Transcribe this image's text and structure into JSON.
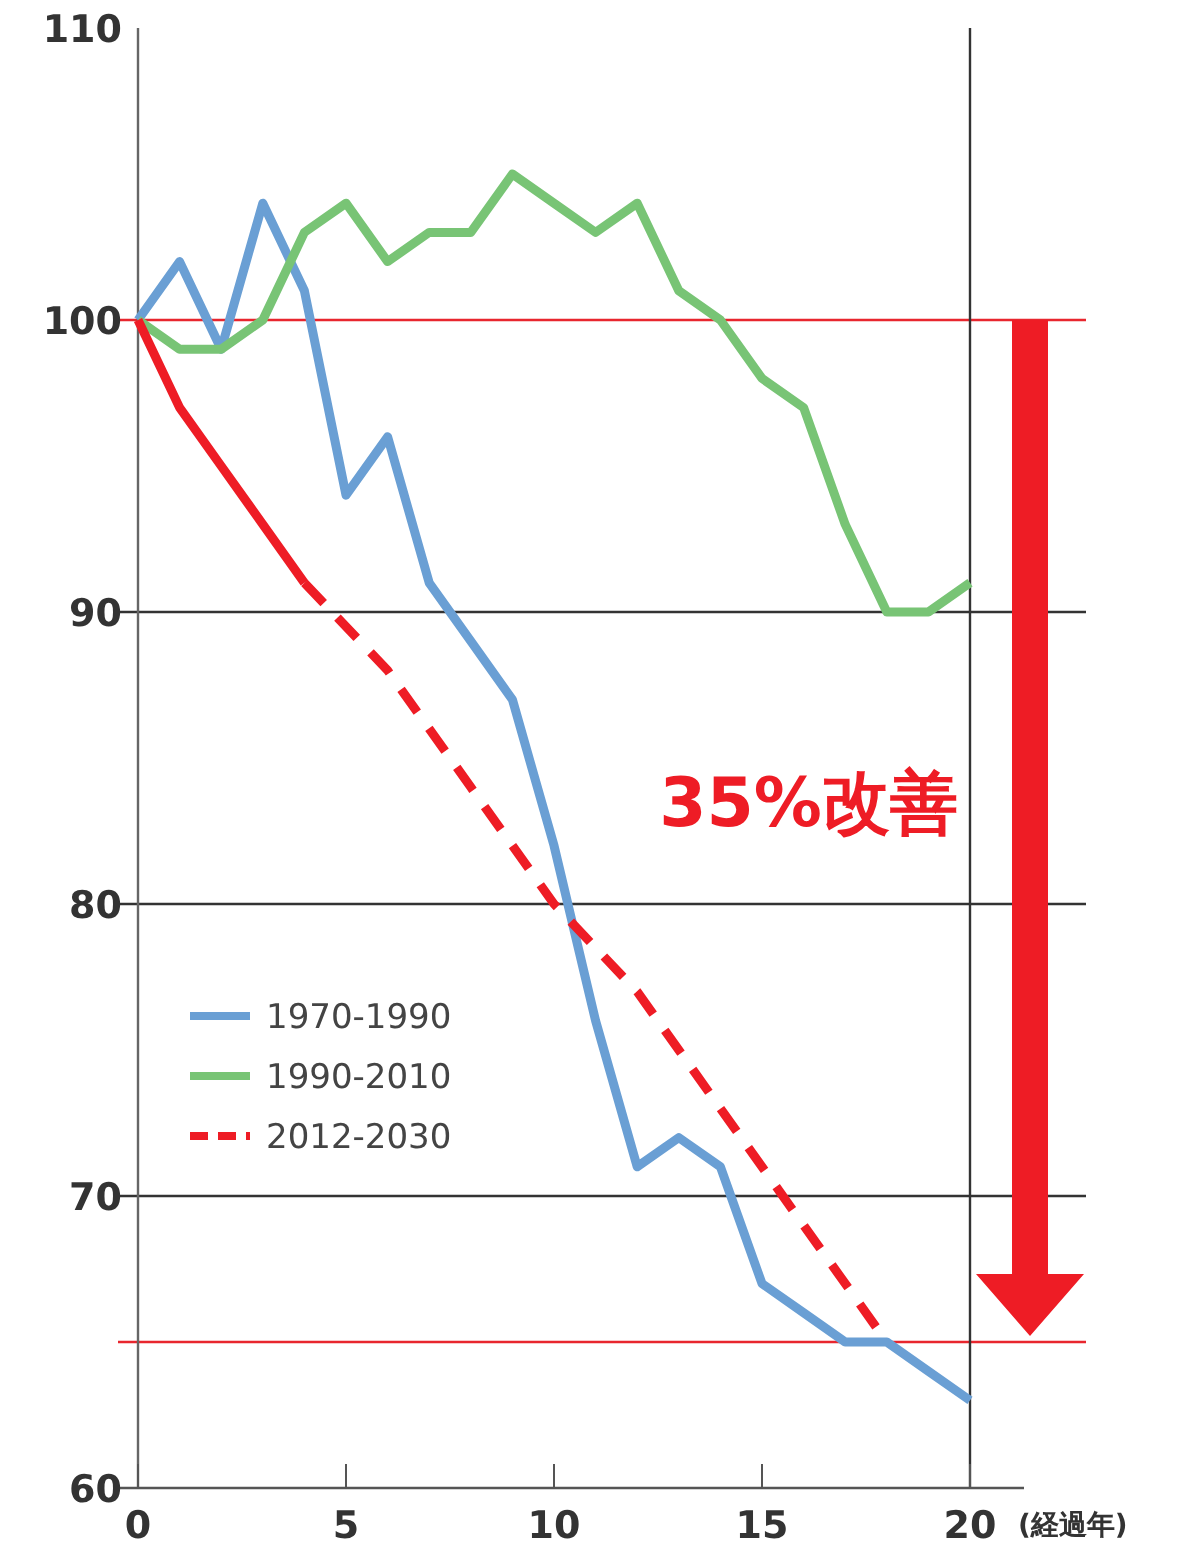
{
  "chart_data": {
    "type": "line",
    "xlabel": "(経過年)",
    "xlim": [
      0,
      20
    ],
    "ylim": [
      60,
      110
    ],
    "xticks": [
      0,
      5,
      10,
      15,
      20
    ],
    "yticks": [
      60,
      70,
      80,
      90,
      100,
      110
    ],
    "legend": "left",
    "grid": false,
    "series": [
      {
        "name": "1970-1990",
        "color": "#6a9fd4",
        "line_style": "solid",
        "x": [
          0,
          1,
          2,
          3,
          4,
          5,
          6,
          7,
          8,
          9,
          10,
          11,
          12,
          13,
          14,
          15,
          16,
          17,
          18,
          19,
          20
        ],
        "values": [
          100,
          102,
          99,
          104,
          101,
          94,
          96,
          91,
          89,
          87,
          82,
          76,
          71,
          72,
          71,
          67,
          66,
          65,
          65,
          64,
          63
        ]
      },
      {
        "name": "1990-2010",
        "color": "#78c475",
        "line_style": "solid",
        "x": [
          0,
          1,
          2,
          3,
          4,
          5,
          6,
          7,
          8,
          9,
          10,
          11,
          12,
          13,
          14,
          15,
          16,
          17,
          18,
          19,
          20
        ],
        "values": [
          100,
          99,
          99,
          100,
          103,
          104,
          102,
          103,
          103,
          105,
          104,
          103,
          104,
          101,
          100,
          98,
          97,
          93,
          90,
          90,
          91
        ]
      },
      {
        "color": "#ee1c25",
        "line_style": "solid",
        "x": [
          0,
          1,
          2,
          3,
          4
        ],
        "values": [
          100,
          97,
          95,
          93,
          91
        ]
      },
      {
        "name": "2012-2030",
        "color": "#ee1c25",
        "line_style": "dashed",
        "x": [
          4,
          6,
          8,
          10,
          12,
          14,
          16,
          18
        ],
        "values": [
          91,
          88,
          84,
          80,
          77,
          73,
          69,
          65
        ]
      }
    ],
    "ref_lines": [
      {
        "axis": "y",
        "value": 100,
        "color": "#e8262e"
      },
      {
        "axis": "y",
        "value": 65,
        "color": "#e8262e"
      },
      {
        "axis": "y",
        "value": 90,
        "color": "#333333"
      },
      {
        "axis": "y",
        "value": 80,
        "color": "#333333"
      },
      {
        "axis": "y",
        "value": 70,
        "color": "#333333"
      }
    ],
    "annotations": [
      "35%改善"
    ]
  }
}
